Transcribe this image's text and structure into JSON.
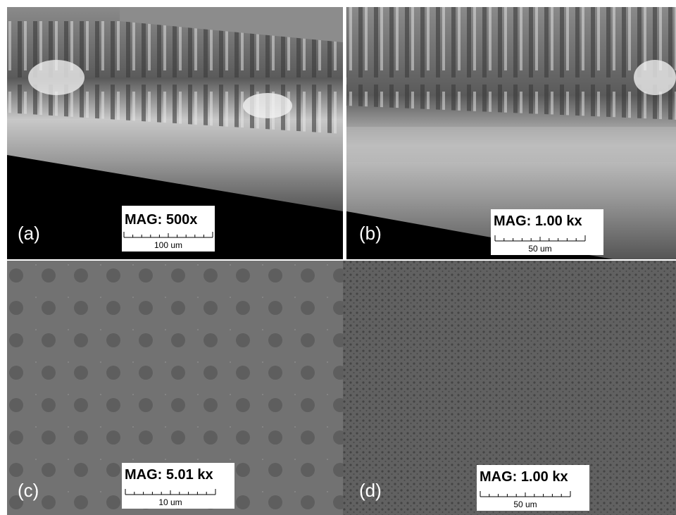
{
  "panels": [
    {
      "label": "(a)",
      "magnification": "MAG: 500x",
      "scale": "100 um"
    },
    {
      "label": "(b)",
      "magnification": "MAG: 1.00 kx",
      "scale": "50 um"
    },
    {
      "label": "(c)",
      "magnification": "MAG: 5.01 kx",
      "scale": "10 um"
    },
    {
      "label": "(d)",
      "magnification": "MAG: 1.00 kx",
      "scale": "50 um"
    }
  ]
}
